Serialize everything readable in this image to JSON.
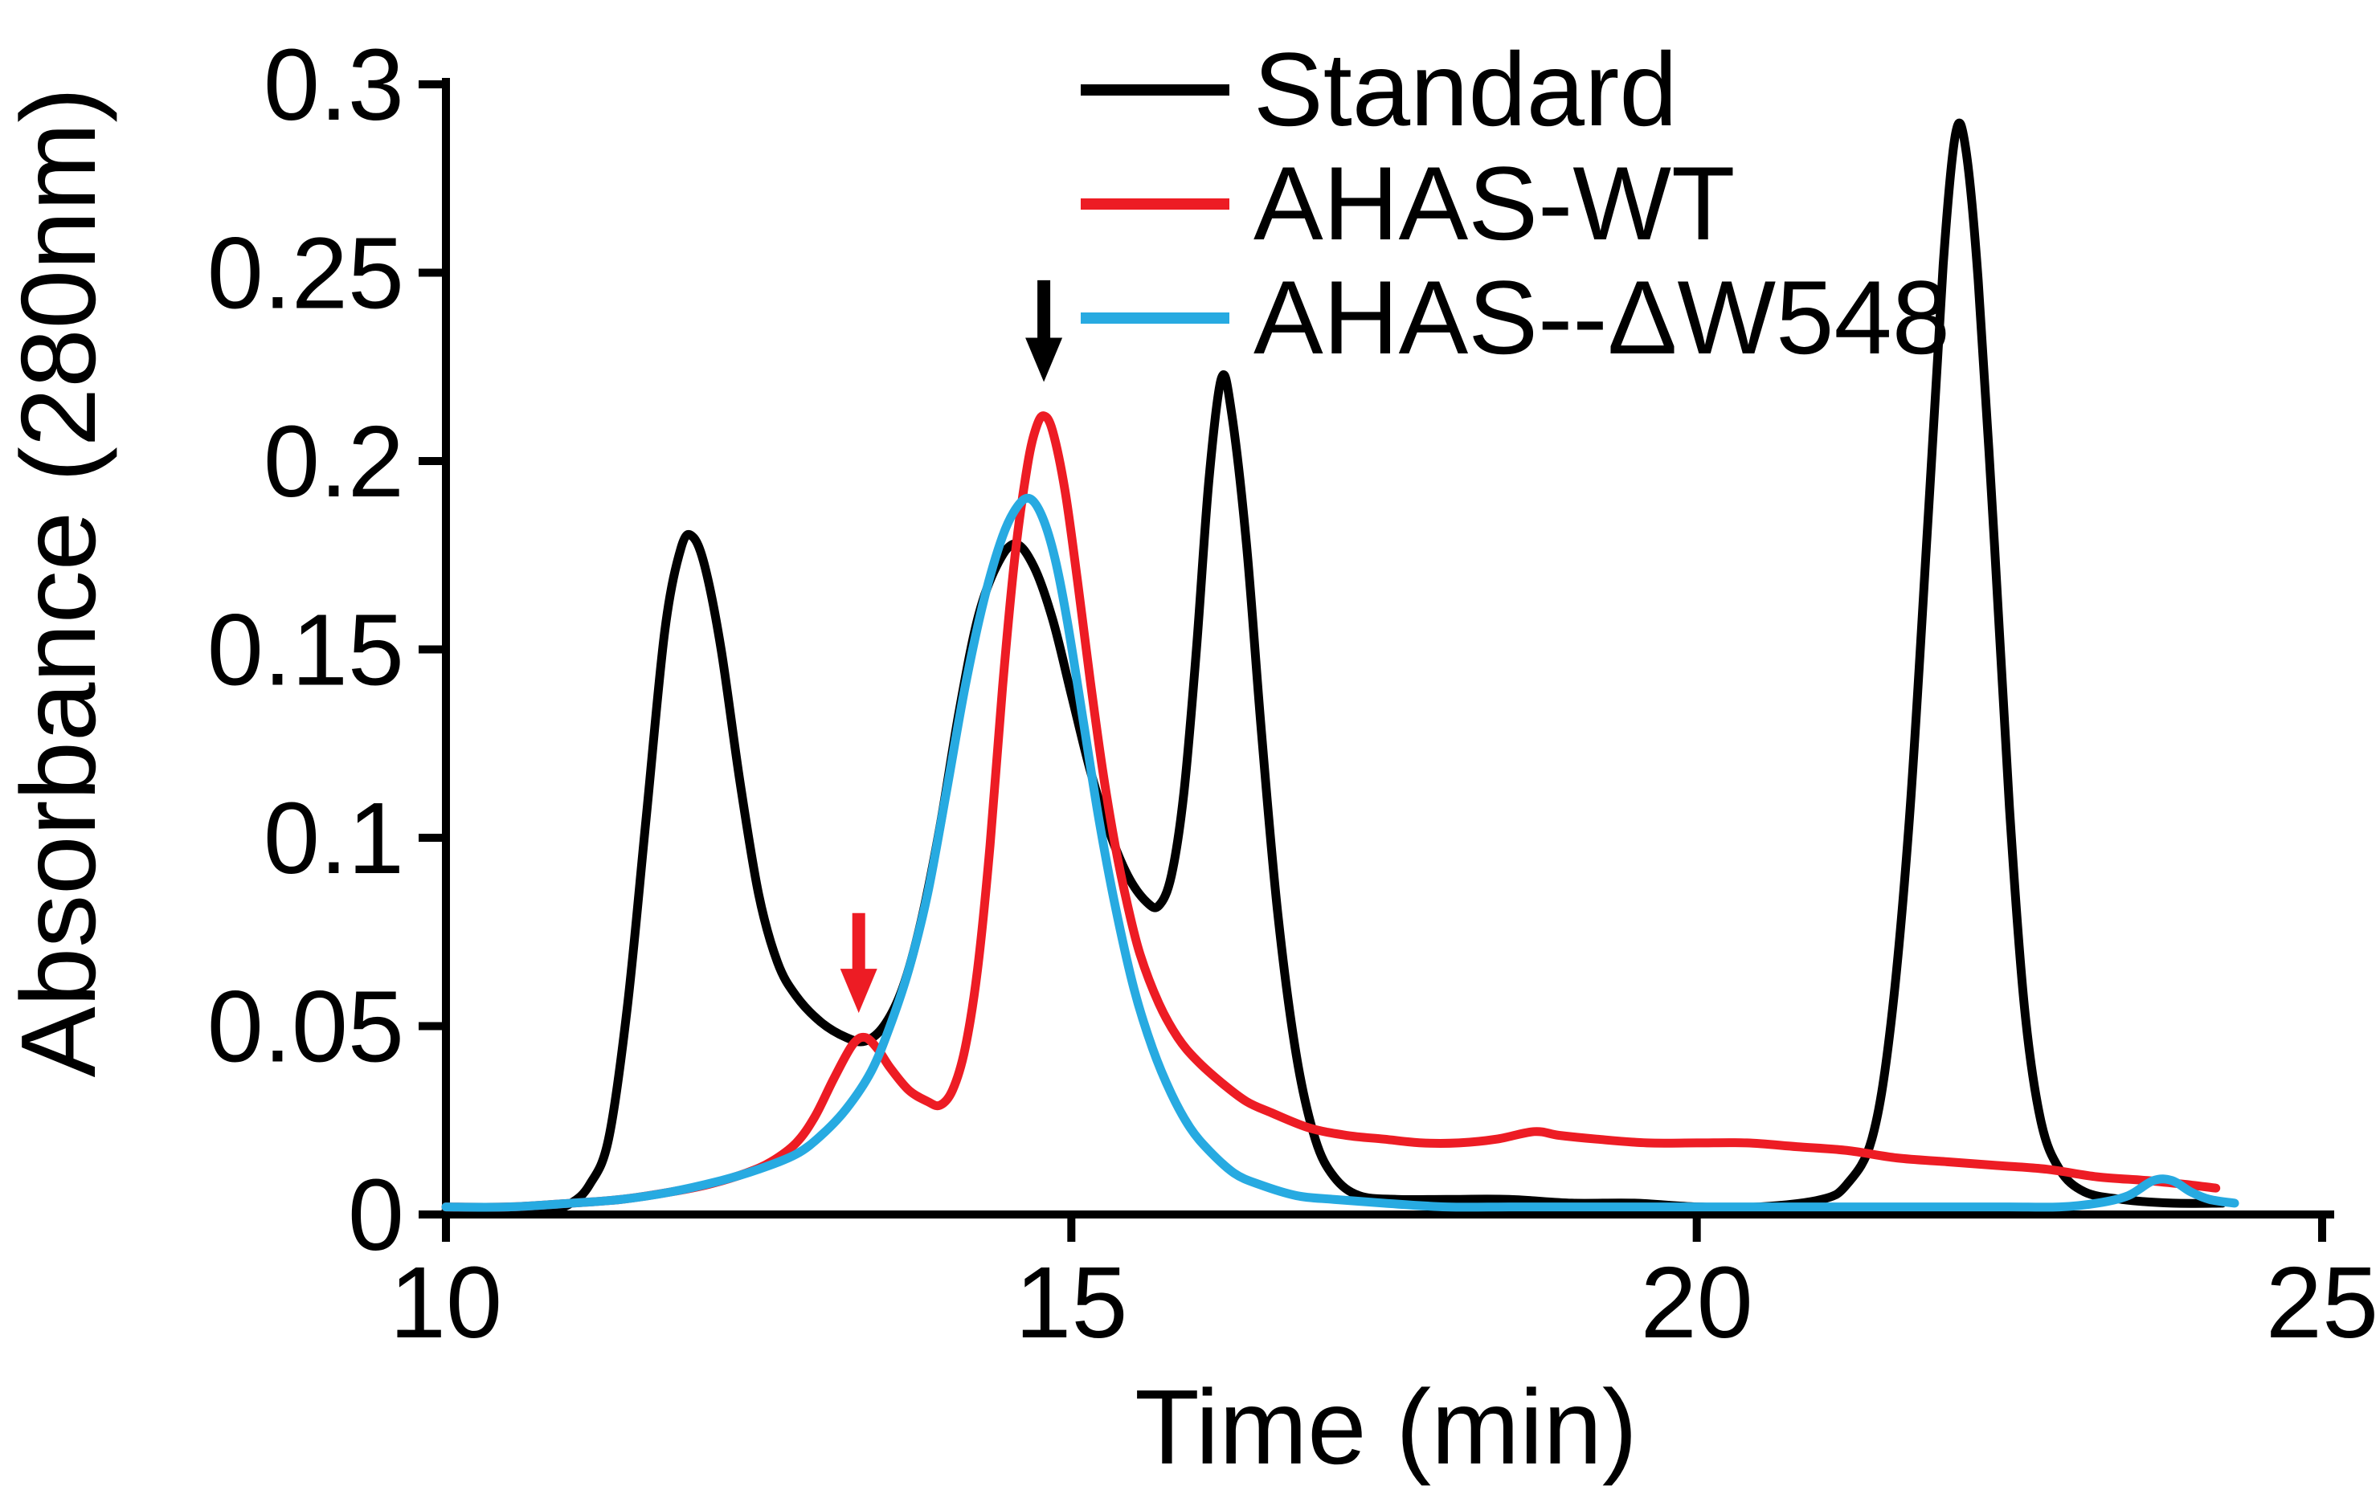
{
  "figure": {
    "background": "#ffffff",
    "axis_color": "#000000"
  },
  "chart_data": {
    "type": "line",
    "title": "",
    "xlabel": "Time (min)",
    "ylabel": "Absorbance (280nm)",
    "xlim": [
      10,
      25
    ],
    "ylim": [
      0,
      0.3
    ],
    "xticks": [
      10,
      15,
      20,
      25
    ],
    "xtick_labels": [
      "10",
      "15",
      "20",
      "25"
    ],
    "yticks": [
      0,
      0.05,
      0.1,
      0.15,
      0.2,
      0.25,
      0.3
    ],
    "ytick_labels": [
      "0",
      "0.05",
      "0.1",
      "0.15",
      "0.2",
      "0.25",
      "0.3"
    ],
    "grid": false,
    "legend_position": "top-center",
    "series": [
      {
        "name": "Standard",
        "color": "#000000",
        "points": [
          [
            10,
            0.001
          ],
          [
            10.4,
            0.001
          ],
          [
            10.8,
            0.001
          ],
          [
            11.0,
            0.003
          ],
          [
            11.15,
            0.008
          ],
          [
            11.3,
            0.02
          ],
          [
            11.45,
            0.055
          ],
          [
            11.6,
            0.105
          ],
          [
            11.75,
            0.155
          ],
          [
            11.88,
            0.177
          ],
          [
            11.97,
            0.18
          ],
          [
            12.07,
            0.172
          ],
          [
            12.2,
            0.15
          ],
          [
            12.35,
            0.115
          ],
          [
            12.5,
            0.085
          ],
          [
            12.65,
            0.067
          ],
          [
            12.8,
            0.058
          ],
          [
            13.0,
            0.051
          ],
          [
            13.2,
            0.047
          ],
          [
            13.35,
            0.046
          ],
          [
            13.5,
            0.05
          ],
          [
            13.65,
            0.06
          ],
          [
            13.8,
            0.078
          ],
          [
            13.95,
            0.103
          ],
          [
            14.1,
            0.133
          ],
          [
            14.25,
            0.158
          ],
          [
            14.4,
            0.172
          ],
          [
            14.55,
            0.178
          ],
          [
            14.7,
            0.172
          ],
          [
            14.85,
            0.158
          ],
          [
            15.0,
            0.138
          ],
          [
            15.15,
            0.118
          ],
          [
            15.3,
            0.102
          ],
          [
            15.45,
            0.09
          ],
          [
            15.6,
            0.083
          ],
          [
            15.7,
            0.082
          ],
          [
            15.8,
            0.09
          ],
          [
            15.9,
            0.112
          ],
          [
            16.0,
            0.15
          ],
          [
            16.1,
            0.195
          ],
          [
            16.2,
            0.222
          ],
          [
            16.28,
            0.213
          ],
          [
            16.4,
            0.178
          ],
          [
            16.52,
            0.128
          ],
          [
            16.65,
            0.08
          ],
          [
            16.8,
            0.042
          ],
          [
            16.95,
            0.02
          ],
          [
            17.1,
            0.01
          ],
          [
            17.3,
            0.005
          ],
          [
            17.6,
            0.004
          ],
          [
            18.0,
            0.004
          ],
          [
            18.5,
            0.004
          ],
          [
            19.0,
            0.003
          ],
          [
            19.5,
            0.003
          ],
          [
            20.0,
            0.002
          ],
          [
            20.5,
            0.002
          ],
          [
            21.0,
            0.004
          ],
          [
            21.2,
            0.008
          ],
          [
            21.4,
            0.02
          ],
          [
            21.55,
            0.05
          ],
          [
            21.7,
            0.105
          ],
          [
            21.85,
            0.185
          ],
          [
            21.97,
            0.252
          ],
          [
            22.07,
            0.287
          ],
          [
            22.15,
            0.283
          ],
          [
            22.25,
            0.248
          ],
          [
            22.38,
            0.178
          ],
          [
            22.5,
            0.108
          ],
          [
            22.62,
            0.055
          ],
          [
            22.75,
            0.025
          ],
          [
            22.9,
            0.012
          ],
          [
            23.1,
            0.006
          ],
          [
            23.4,
            0.004
          ],
          [
            23.8,
            0.003
          ],
          [
            24.2,
            0.003
          ]
        ]
      },
      {
        "name": "AHAS-WT",
        "color": "#ed1c24",
        "points": [
          [
            10,
            0.002
          ],
          [
            10.5,
            0.002
          ],
          [
            11.0,
            0.003
          ],
          [
            11.4,
            0.004
          ],
          [
            11.8,
            0.006
          ],
          [
            12.1,
            0.008
          ],
          [
            12.4,
            0.011
          ],
          [
            12.6,
            0.014
          ],
          [
            12.8,
            0.019
          ],
          [
            12.95,
            0.026
          ],
          [
            13.1,
            0.036
          ],
          [
            13.25,
            0.045
          ],
          [
            13.35,
            0.047
          ],
          [
            13.45,
            0.044
          ],
          [
            13.55,
            0.039
          ],
          [
            13.7,
            0.033
          ],
          [
            13.85,
            0.03
          ],
          [
            13.95,
            0.029
          ],
          [
            14.05,
            0.033
          ],
          [
            14.15,
            0.044
          ],
          [
            14.25,
            0.065
          ],
          [
            14.35,
            0.098
          ],
          [
            14.45,
            0.14
          ],
          [
            14.55,
            0.175
          ],
          [
            14.65,
            0.199
          ],
          [
            14.72,
            0.209
          ],
          [
            14.78,
            0.212
          ],
          [
            14.85,
            0.208
          ],
          [
            14.95,
            0.192
          ],
          [
            15.05,
            0.168
          ],
          [
            15.15,
            0.142
          ],
          [
            15.25,
            0.118
          ],
          [
            15.35,
            0.098
          ],
          [
            15.45,
            0.082
          ],
          [
            15.55,
            0.069
          ],
          [
            15.7,
            0.056
          ],
          [
            15.85,
            0.047
          ],
          [
            16.0,
            0.041
          ],
          [
            16.2,
            0.035
          ],
          [
            16.4,
            0.03
          ],
          [
            16.6,
            0.027
          ],
          [
            16.9,
            0.023
          ],
          [
            17.2,
            0.021
          ],
          [
            17.5,
            0.02
          ],
          [
            17.8,
            0.019
          ],
          [
            18.1,
            0.019
          ],
          [
            18.4,
            0.02
          ],
          [
            18.7,
            0.022
          ],
          [
            18.9,
            0.021
          ],
          [
            19.2,
            0.02
          ],
          [
            19.6,
            0.019
          ],
          [
            20.0,
            0.019
          ],
          [
            20.4,
            0.019
          ],
          [
            20.8,
            0.018
          ],
          [
            21.2,
            0.017
          ],
          [
            21.6,
            0.015
          ],
          [
            22.0,
            0.014
          ],
          [
            22.4,
            0.013
          ],
          [
            22.8,
            0.012
          ],
          [
            23.2,
            0.01
          ],
          [
            23.6,
            0.009
          ],
          [
            23.9,
            0.008
          ],
          [
            24.15,
            0.007
          ]
        ]
      },
      {
        "name": "AHAS--ΔW548",
        "color": "#27aae1",
        "points": [
          [
            10,
            0.002
          ],
          [
            10.5,
            0.002
          ],
          [
            11.0,
            0.003
          ],
          [
            11.4,
            0.004
          ],
          [
            11.8,
            0.006
          ],
          [
            12.2,
            0.009
          ],
          [
            12.5,
            0.012
          ],
          [
            12.8,
            0.016
          ],
          [
            13.0,
            0.021
          ],
          [
            13.2,
            0.028
          ],
          [
            13.4,
            0.038
          ],
          [
            13.55,
            0.05
          ],
          [
            13.7,
            0.065
          ],
          [
            13.85,
            0.085
          ],
          [
            14.0,
            0.112
          ],
          [
            14.15,
            0.14
          ],
          [
            14.3,
            0.163
          ],
          [
            14.45,
            0.18
          ],
          [
            14.57,
            0.188
          ],
          [
            14.67,
            0.19
          ],
          [
            14.77,
            0.185
          ],
          [
            14.87,
            0.174
          ],
          [
            14.97,
            0.157
          ],
          [
            15.1,
            0.13
          ],
          [
            15.22,
            0.105
          ],
          [
            15.35,
            0.082
          ],
          [
            15.5,
            0.06
          ],
          [
            15.65,
            0.044
          ],
          [
            15.8,
            0.032
          ],
          [
            15.95,
            0.023
          ],
          [
            16.1,
            0.017
          ],
          [
            16.3,
            0.011
          ],
          [
            16.5,
            0.008
          ],
          [
            16.8,
            0.005
          ],
          [
            17.1,
            0.004
          ],
          [
            17.5,
            0.003
          ],
          [
            18.0,
            0.002
          ],
          [
            18.5,
            0.002
          ],
          [
            19.0,
            0.002
          ],
          [
            19.5,
            0.002
          ],
          [
            20.0,
            0.002
          ],
          [
            20.5,
            0.002
          ],
          [
            21.0,
            0.002
          ],
          [
            21.5,
            0.002
          ],
          [
            22.0,
            0.002
          ],
          [
            22.5,
            0.002
          ],
          [
            22.9,
            0.002
          ],
          [
            23.2,
            0.003
          ],
          [
            23.45,
            0.005
          ],
          [
            23.65,
            0.009
          ],
          [
            23.8,
            0.009
          ],
          [
            23.95,
            0.006
          ],
          [
            24.1,
            0.004
          ],
          [
            24.3,
            0.003
          ]
        ]
      }
    ],
    "annotations": [
      {
        "type": "down-arrow",
        "color": "#000000",
        "x": 14.78,
        "y_tail": 0.248,
        "y_tip": 0.221,
        "points_at": "AHAS-WT main peak"
      },
      {
        "type": "down-arrow",
        "color": "#ed1c24",
        "x": 13.3,
        "y_tail": 0.08,
        "y_tip": 0.0535,
        "points_at": "AHAS-WT shoulder peak"
      }
    ]
  }
}
